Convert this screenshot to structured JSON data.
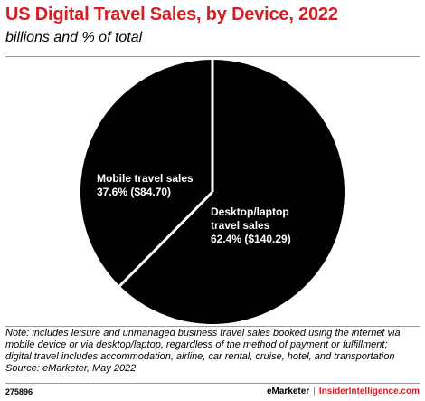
{
  "header": {
    "title": "US Digital Travel Sales, by Device, 2022",
    "subtitle": "billions and % of total"
  },
  "chart_data": {
    "type": "pie",
    "title": "US Digital Travel Sales, by Device, 2022",
    "subtitle": "billions and % of total",
    "slices": [
      {
        "label_lines": [
          "Desktop/laptop",
          "travel sales"
        ],
        "value_text": "62.4% ($140.29)",
        "percent": 62.4,
        "value": 140.29,
        "color": "#000000"
      },
      {
        "label_lines": [
          "Mobile travel sales"
        ],
        "value_text": "37.6% ($84.70)",
        "percent": 37.6,
        "value": 84.7,
        "color": "#000000"
      }
    ],
    "separator_color": "#ffffff"
  },
  "note": {
    "lines": [
      "Note: includes leisure and unmanaged business travel sales booked using the internet via",
      "mobile device or via desktop/laptop, regardless of the method of payment or fulfillment;",
      "digital travel includes accommodation, airline, car rental, cruise, hotel, and transportation",
      "Source: eMarketer, May 2022"
    ]
  },
  "footer": {
    "chart_id": "275896",
    "brand": "eMarketer",
    "brand2": "InsiderIntelligence.com"
  }
}
